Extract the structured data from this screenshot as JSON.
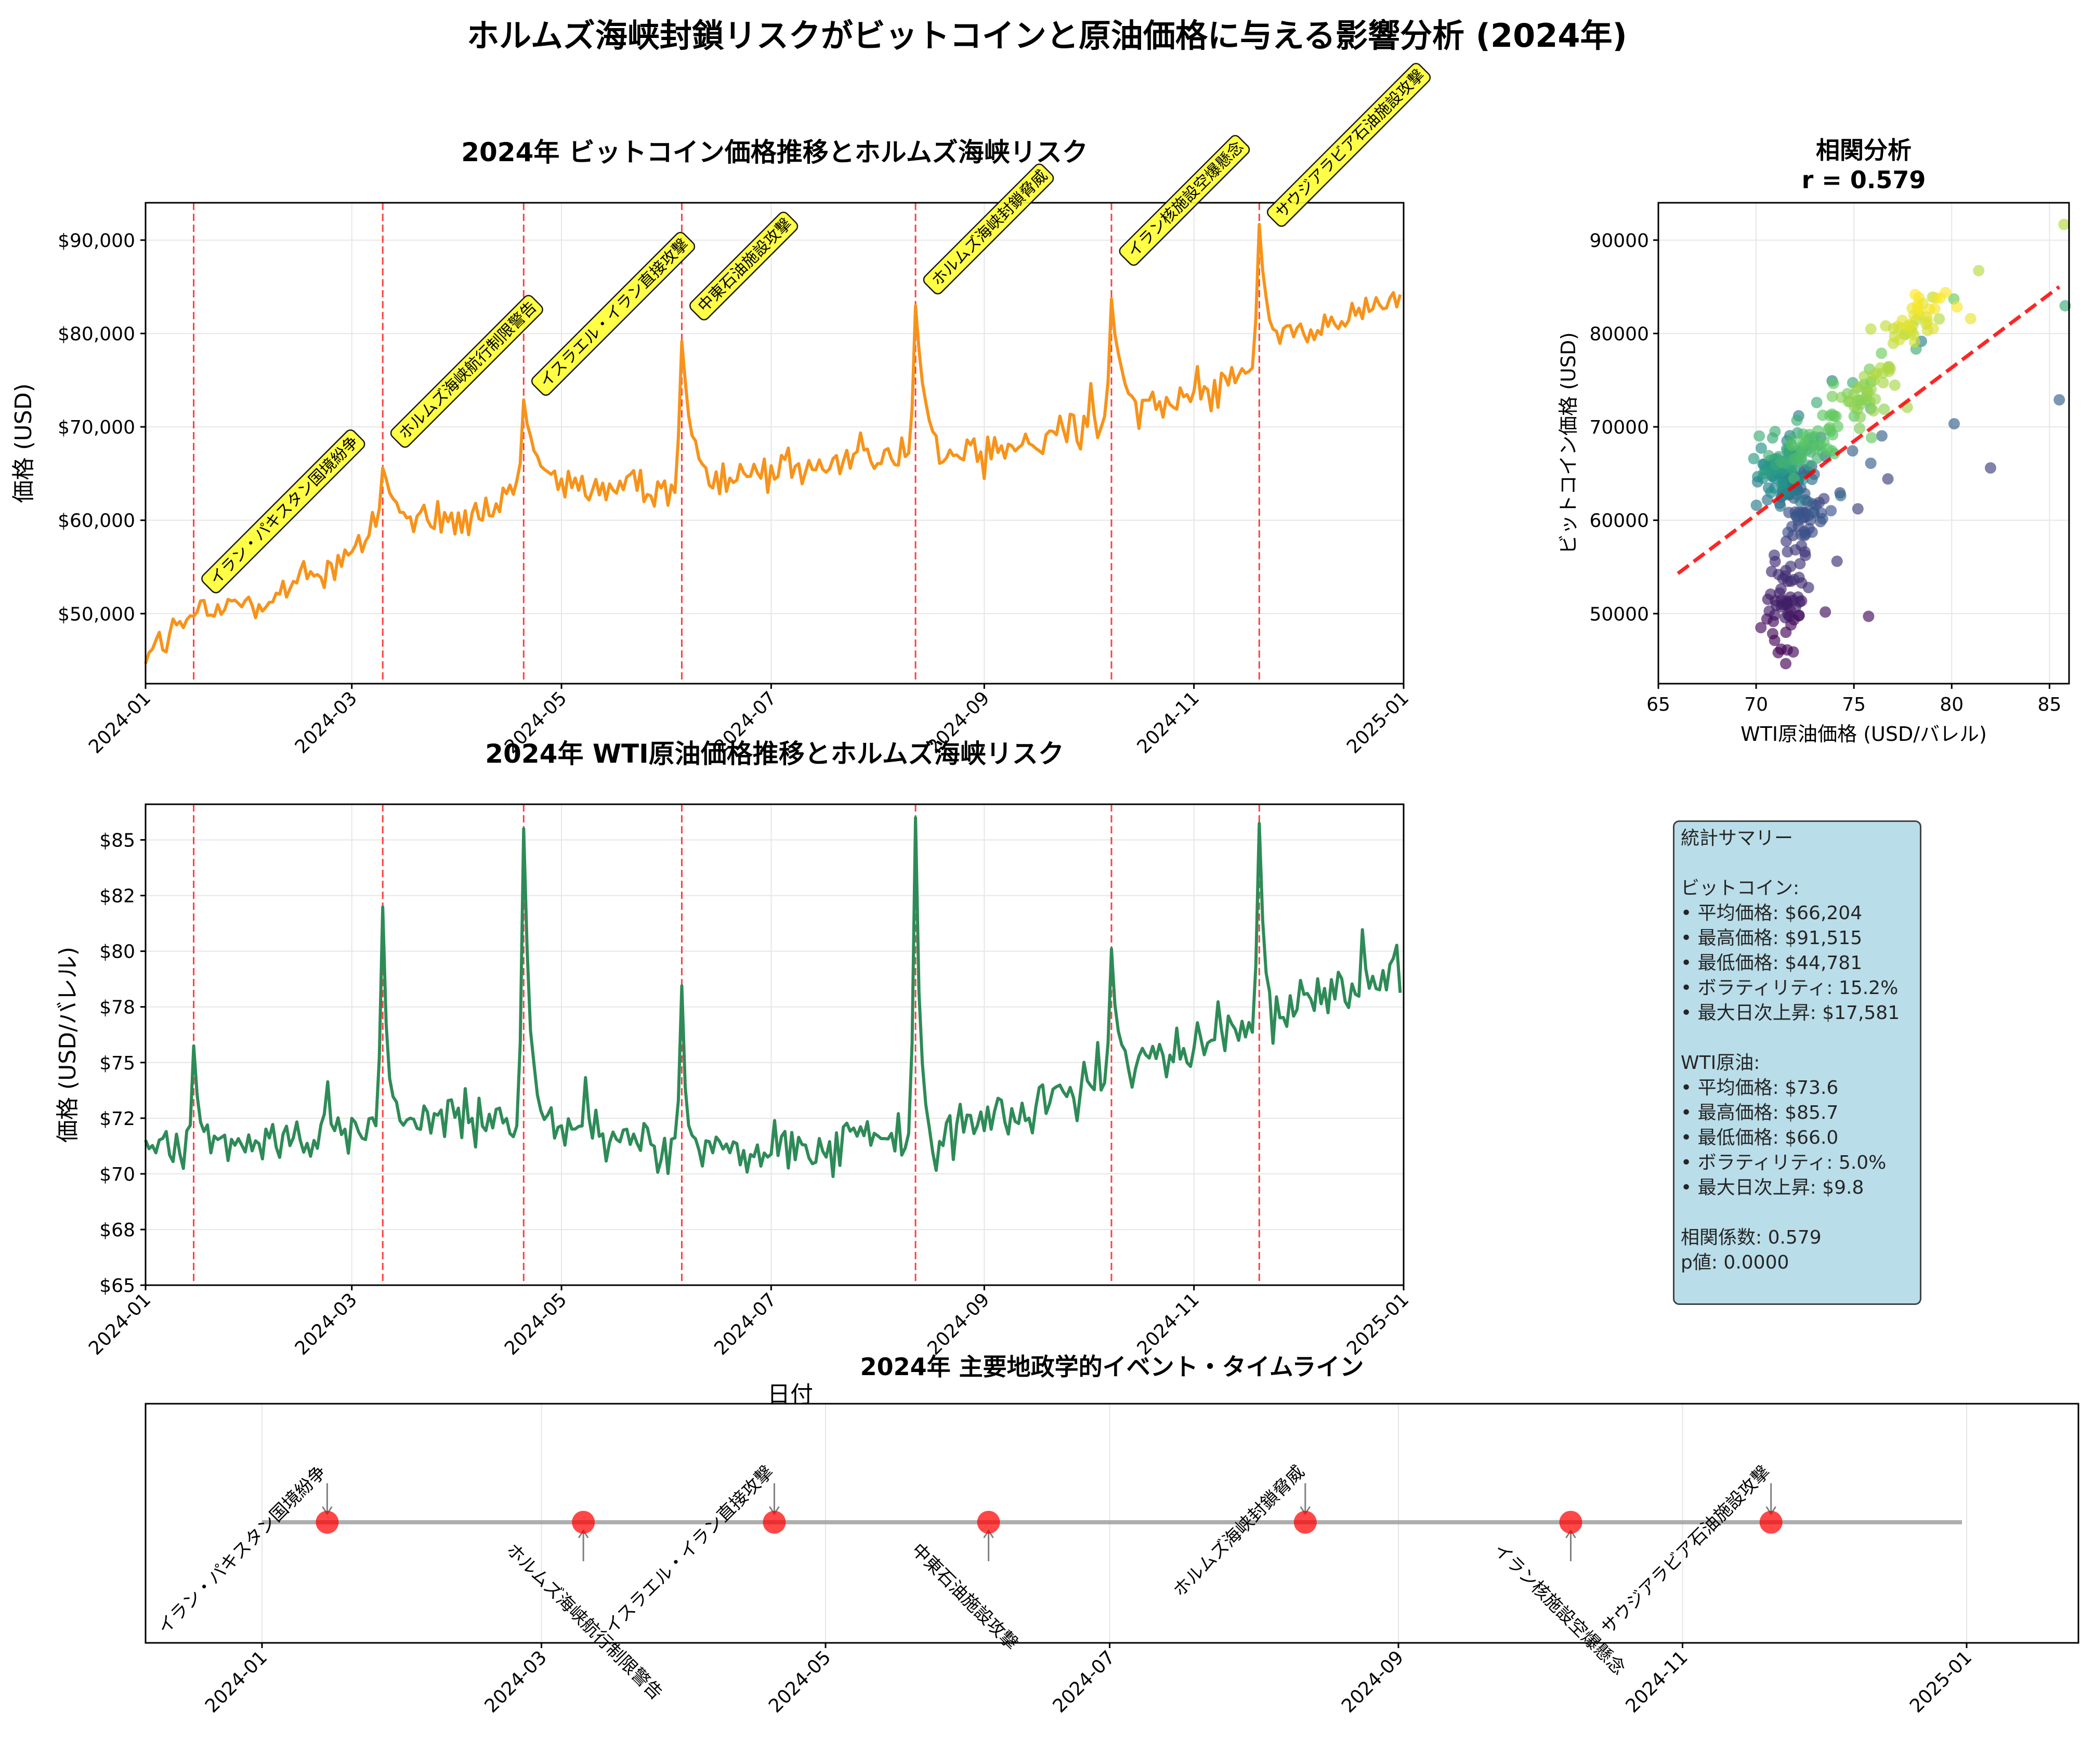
{
  "title": "ホルムズ海峡封鎖リスクがビットコインと原油価格に与える影響分析 (2024年)",
  "events": [
    {
      "date": "2024-01-15",
      "label": "イラン・パキスタン国境紛争"
    },
    {
      "date": "2024-03-10",
      "label": "ホルムズ海峡航行制限警告"
    },
    {
      "date": "2024-04-20",
      "label": "イスラエル・イラン直接攻撃"
    },
    {
      "date": "2024-06-05",
      "label": "中東石油施設攻撃"
    },
    {
      "date": "2024-08-12",
      "label": "ホルムズ海峡封鎖脅威"
    },
    {
      "date": "2024-10-08",
      "label": "イラン核施設空爆懸念"
    },
    {
      "date": "2024-11-20",
      "label": "サウジアラビア石油施設攻撃"
    }
  ],
  "chart_data": [
    {
      "type": "line",
      "title": "2024年 ビットコイン価格推移とホルムズ海峡リスク",
      "xlabel": "",
      "ylabel": "価格 (USD)",
      "color": "#f7931a",
      "event_line_color": "#ff0000",
      "xlim": [
        "2024-01-01",
        "2025-01-01"
      ],
      "ylim": [
        42500,
        94000
      ],
      "yticks": [
        50000,
        60000,
        70000,
        80000,
        90000
      ],
      "ytick_labels": [
        "$50,000",
        "$60,000",
        "$70,000",
        "$80,000",
        "$90,000"
      ],
      "xticks": [
        "2024-01",
        "2024-03",
        "2024-05",
        "2024-07",
        "2024-09",
        "2024-11",
        "2025-01"
      ],
      "anchors": [
        [
          "2024-01-01",
          46000
        ],
        [
          "2024-01-15",
          49500
        ],
        [
          "2024-02-15",
          53000
        ],
        [
          "2024-03-10",
          59500
        ],
        [
          "2024-04-10",
          60000
        ],
        [
          "2024-04-20",
          64000
        ],
        [
          "2024-05-20",
          63000
        ],
        [
          "2024-06-05",
          64500
        ],
        [
          "2024-07-10",
          66000
        ],
        [
          "2024-08-12",
          67000
        ],
        [
          "2024-09-15",
          68000
        ],
        [
          "2024-10-08",
          71000
        ],
        [
          "2024-11-10",
          75000
        ],
        [
          "2024-11-20",
          78000
        ],
        [
          "2024-12-31",
          84000
        ]
      ],
      "spikes": [
        [
          "2024-03-10",
          66000,
          8
        ],
        [
          "2024-04-20",
          72500,
          8
        ],
        [
          "2024-06-05",
          79000,
          6
        ],
        [
          "2024-08-12",
          83000,
          6
        ],
        [
          "2024-10-08",
          84000,
          6
        ],
        [
          "2024-11-20",
          91515,
          5
        ]
      ],
      "noise": 3200
    },
    {
      "type": "line",
      "title": "2024年 WTI原油価格推移とホルムズ海峡リスク",
      "xlabel": "日付",
      "ylabel": "価格 (USD/バレル)",
      "color": "#2e8b57",
      "event_line_color": "#ff0000",
      "xlim": [
        "2024-01-01",
        "2025-01-01"
      ],
      "ylim": [
        65,
        86.6
      ],
      "yticks": [
        65,
        67.5,
        70,
        72.5,
        75,
        77.5,
        80,
        82.5,
        85
      ],
      "ytick_labels": [
        "$65",
        "$68",
        "$70",
        "$72",
        "$75",
        "$78",
        "$80",
        "$82",
        "$85"
      ],
      "xticks": [
        "2024-01",
        "2024-03",
        "2024-05",
        "2024-07",
        "2024-09",
        "2024-11",
        "2025-01"
      ],
      "anchors": [
        [
          "2024-01-01",
          71
        ],
        [
          "2024-03-31",
          72.5
        ],
        [
          "2024-06-30",
          71
        ],
        [
          "2024-08-31",
          72
        ],
        [
          "2024-10-08",
          74.5
        ],
        [
          "2024-11-20",
          77
        ],
        [
          "2024-12-31",
          79
        ]
      ],
      "spikes": [
        [
          "2024-01-15",
          76,
          3
        ],
        [
          "2024-03-10",
          82,
          3
        ],
        [
          "2024-04-20",
          85.5,
          4
        ],
        [
          "2024-06-05",
          78.3,
          2
        ],
        [
          "2024-08-12",
          85.7,
          3
        ],
        [
          "2024-10-08",
          80,
          4
        ],
        [
          "2024-11-20",
          85.5,
          3
        ]
      ],
      "noise": 1.7
    },
    {
      "type": "scatter",
      "title": "相関分析",
      "subtitle": "r = 0.579",
      "xlabel": "WTI原油価格 (USD/バレル)",
      "ylabel": "ビットコイン価格 (USD)",
      "xlim": [
        65,
        86
      ],
      "ylim": [
        42500,
        94000
      ],
      "xticks": [
        65,
        70,
        75,
        80,
        85
      ],
      "yticks": [
        50000,
        60000,
        70000,
        80000,
        90000
      ],
      "ytick_labels": [
        "50000",
        "60000",
        "70000",
        "80000",
        "90000"
      ],
      "colormap": "viridis",
      "regression": {
        "x0": 66.0,
        "y0": 54300,
        "x1": 85.5,
        "y1": 85000,
        "color": "#ff0000"
      },
      "pair_with": [
        0,
        1
      ]
    },
    {
      "type": "timeline",
      "title": "2024年 主要地政学的イベント・タイムライン",
      "xlim": [
        "2023-12-07",
        "2025-01-25"
      ],
      "line_range": [
        "2024-01-01",
        "2024-12-31"
      ],
      "xticks": [
        "2024-01",
        "2024-03",
        "2024-05",
        "2024-07",
        "2024-09",
        "2024-11",
        "2025-01"
      ],
      "marker_color": "#ff0000"
    }
  ],
  "stats": {
    "heading": "統計サマリー",
    "btc_heading": "ビットコイン:",
    "btc_lines": [
      "• 平均価格: $66,204",
      "• 最高価格: $91,515",
      "• 最低価格: $44,781",
      "• ボラティリティ: 15.2%",
      "• 最大日次上昇: $17,581"
    ],
    "wti_heading": "WTI原油:",
    "wti_lines": [
      "• 平均価格: $73.6",
      "• 最高価格: $85.7",
      "• 最低価格: $66.0",
      "• ボラティリティ: 5.0%",
      "• 最大日次上昇: $9.8"
    ],
    "corr_line": "相関係数: 0.579",
    "p_line": "p値: 0.0000"
  }
}
